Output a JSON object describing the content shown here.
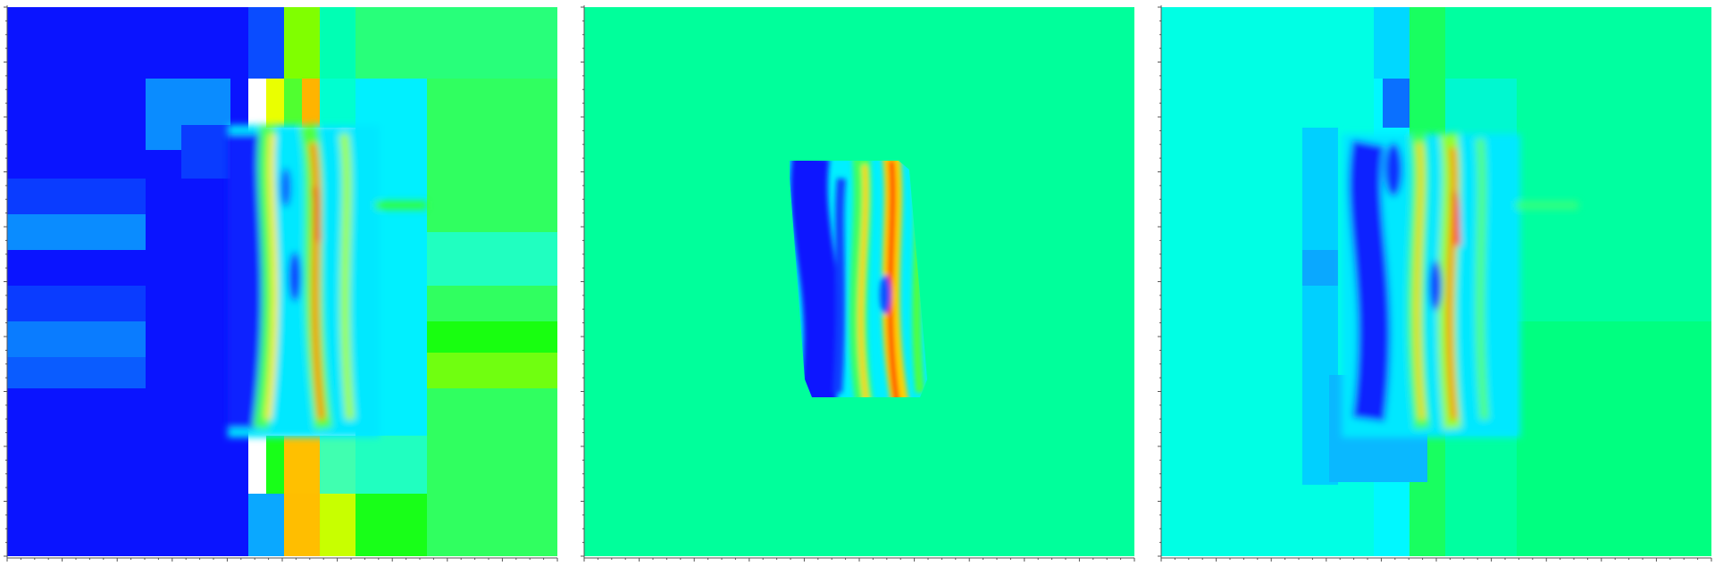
{
  "panels": [
    {
      "id": "left"
    },
    {
      "id": "middle"
    },
    {
      "id": "right"
    }
  ],
  "colors": {
    "deep_blue": "#0018ff",
    "blue": "#0a3cff",
    "sky": "#0a9bff",
    "cyan": "#00f0ff",
    "aqua": "#00ffc8",
    "spring": "#00ff9b",
    "green": "#18ff18",
    "lime": "#7dff00",
    "yellow": "#eaff00",
    "orange": "#ffb400",
    "red": "#ff1e00",
    "axis": "#555555"
  }
}
